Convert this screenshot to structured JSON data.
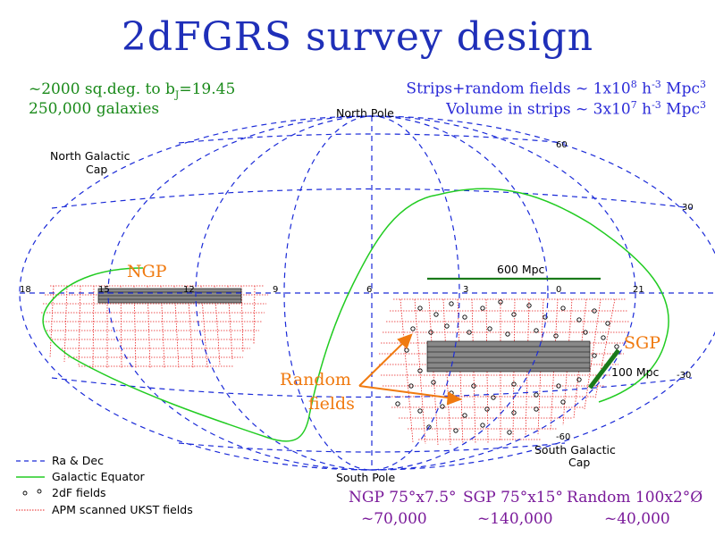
{
  "title": "2dFGRS survey design",
  "top_left": {
    "line1_prefix": "~2000 sq.deg. to b",
    "line1_sub": "J",
    "line1_suffix": "=19.45",
    "line2": "250,000 galaxies"
  },
  "top_right": {
    "line1_prefix": "Strips+random fields ~ 1x10",
    "line1_exp": "8",
    "line1_unit_h": " h",
    "line1_unit_hexp": "-3",
    "line1_unit_mpc": " Mpc",
    "line1_unit_mpcexp": "3",
    "line2_prefix": "Volume in strips ~ 3x10",
    "line2_exp": "7",
    "line2_unit_h": " h",
    "line2_unit_hexp": "-3",
    "line2_unit_mpc": " Mpc",
    "line2_unit_mpcexp": "3"
  },
  "map_labels": {
    "north_pole": "North Pole",
    "south_pole": "South Pole",
    "north_galactic_cap_1": "North Galactic",
    "north_galactic_cap_2": "Cap",
    "south_galactic_cap_1": "South Galactic",
    "south_galactic_cap_2": "Cap",
    "ngp": "NGP",
    "sgp": "SGP",
    "random_1": "Random",
    "random_2": "fields",
    "scale_600": "600 Mpc",
    "scale_100": "100 Mpc"
  },
  "ticks": {
    "ra": [
      "18",
      "15",
      "12",
      "9",
      "6",
      "3",
      "0",
      "21"
    ],
    "dec": [
      "60",
      "30",
      "-30",
      "-60"
    ]
  },
  "legend": {
    "items": [
      "Ra & Dec",
      "Galactic Equator",
      "2dF fields",
      "APM scanned UKST fields"
    ]
  },
  "bottom": {
    "row1": [
      "NGP 75°x7.5°",
      "SGP 75°x15°",
      "Random 100x2°Ø"
    ],
    "row2": [
      "~70,000",
      "~140,000",
      "~40,000"
    ]
  },
  "colors": {
    "grid": "#1a2ad8",
    "galactic_equator": "#22cc22",
    "apm": "#e82020",
    "arrow": "#f07a10",
    "scale_bar": "#1a7a1a"
  }
}
